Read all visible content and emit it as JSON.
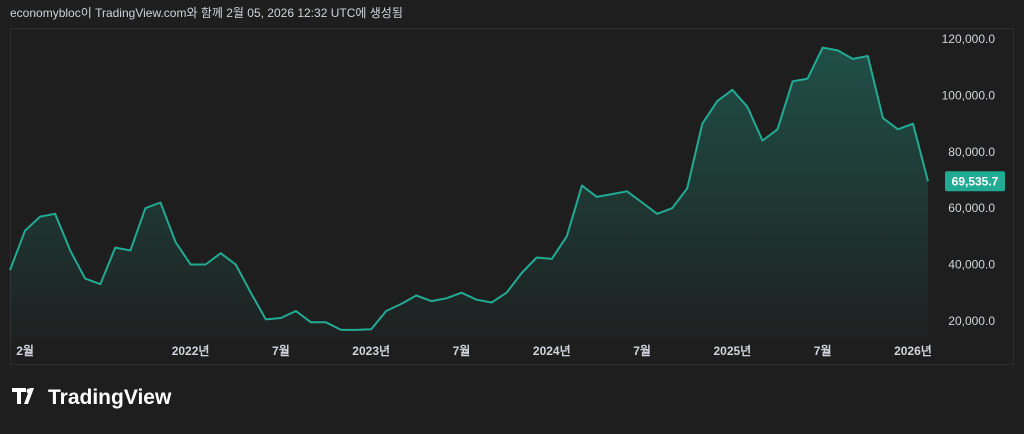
{
  "header": "economybloc이 TradingView.com와 함께 2월 05, 2026 12:32 UTC에 생성됨",
  "brand": "TradingView",
  "chart_data": {
    "type": "area",
    "color": "#22ab94",
    "xlim": [
      "2021-01",
      "2026-02"
    ],
    "ylim": [
      13200,
      123600
    ],
    "grid": false,
    "yticks": [
      {
        "value": 20000,
        "label": "20,000.0"
      },
      {
        "value": 40000,
        "label": "40,000.0"
      },
      {
        "value": 60000,
        "label": "60,000.0"
      },
      {
        "value": 80000,
        "label": "80,000.0"
      },
      {
        "value": 100000,
        "label": "100,000.0"
      },
      {
        "value": 120000,
        "label": "120,000.0"
      }
    ],
    "xticks": [
      {
        "value": "2021-02",
        "label": "2월"
      },
      {
        "value": "2022-01",
        "label": "2022년"
      },
      {
        "value": "2022-07",
        "label": "7월"
      },
      {
        "value": "2023-01",
        "label": "2023년"
      },
      {
        "value": "2023-07",
        "label": "7월"
      },
      {
        "value": "2024-01",
        "label": "2024년"
      },
      {
        "value": "2024-07",
        "label": "7월"
      },
      {
        "value": "2025-01",
        "label": "2025년"
      },
      {
        "value": "2025-07",
        "label": "7월"
      },
      {
        "value": "2026-01",
        "label": "2026년"
      }
    ],
    "x": [
      "2021-01",
      "2021-02",
      "2021-03",
      "2021-04",
      "2021-05",
      "2021-06",
      "2021-07",
      "2021-08",
      "2021-09",
      "2021-10",
      "2021-11",
      "2021-12",
      "2022-01",
      "2022-02",
      "2022-03",
      "2022-04",
      "2022-05",
      "2022-06",
      "2022-07",
      "2022-08",
      "2022-09",
      "2022-10",
      "2022-11",
      "2022-12",
      "2023-01",
      "2023-02",
      "2023-03",
      "2023-04",
      "2023-05",
      "2023-06",
      "2023-07",
      "2023-08",
      "2023-09",
      "2023-10",
      "2023-11",
      "2023-12",
      "2024-01",
      "2024-02",
      "2024-03",
      "2024-04",
      "2024-05",
      "2024-06",
      "2024-07",
      "2024-08",
      "2024-09",
      "2024-10",
      "2024-11",
      "2024-12",
      "2025-01",
      "2025-02",
      "2025-03",
      "2025-04",
      "2025-05",
      "2025-06",
      "2025-07",
      "2025-08",
      "2025-09",
      "2025-10",
      "2025-11",
      "2025-12",
      "2026-01",
      "2026-02"
    ],
    "values": [
      38000,
      52000,
      57000,
      58000,
      45000,
      35000,
      33000,
      46000,
      45000,
      60000,
      62000,
      48000,
      40000,
      40000,
      44000,
      40000,
      30000,
      20500,
      21000,
      23500,
      19500,
      19500,
      16800,
      16800,
      17000,
      23500,
      26000,
      29000,
      27000,
      28000,
      30000,
      27500,
      26500,
      30000,
      37000,
      42500,
      42000,
      50000,
      68000,
      64000,
      65000,
      66000,
      62000,
      58000,
      60000,
      67000,
      90000,
      98000,
      102000,
      96000,
      84000,
      88000,
      105000,
      106000,
      117000,
      116000,
      113000,
      114000,
      92000,
      88000,
      90000,
      69535.7
    ],
    "last_value_label": "69,535.7"
  }
}
